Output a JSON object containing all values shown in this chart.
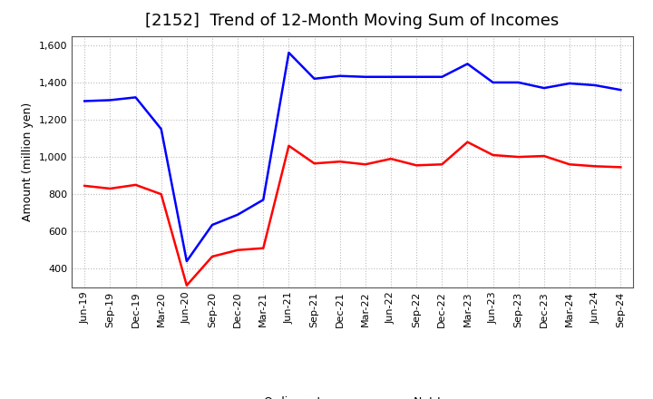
{
  "title": "[2152]  Trend of 12-Month Moving Sum of Incomes",
  "ylabel": "Amount (million yen)",
  "ylim": [
    300,
    1650
  ],
  "yticks": [
    400,
    600,
    800,
    1000,
    1200,
    1400,
    1600
  ],
  "ytick_labels": [
    "400",
    "600",
    "800",
    "1,000",
    "1,200",
    "1,400",
    "1,600"
  ],
  "x_labels": [
    "Jun-19",
    "Sep-19",
    "Dec-19",
    "Mar-20",
    "Jun-20",
    "Sep-20",
    "Dec-20",
    "Mar-21",
    "Jun-21",
    "Sep-21",
    "Dec-21",
    "Mar-22",
    "Jun-22",
    "Sep-22",
    "Dec-22",
    "Mar-23",
    "Jun-23",
    "Sep-23",
    "Dec-23",
    "Mar-24",
    "Jun-24",
    "Sep-24"
  ],
  "ordinary_income": [
    1300,
    1305,
    1320,
    1150,
    440,
    635,
    690,
    770,
    1560,
    1420,
    1435,
    1430,
    1430,
    1430,
    1430,
    1500,
    1400,
    1400,
    1370,
    1395,
    1385,
    1360
  ],
  "net_income": [
    845,
    830,
    850,
    800,
    310,
    465,
    500,
    510,
    1060,
    965,
    975,
    960,
    990,
    955,
    960,
    1080,
    1010,
    1000,
    1005,
    960,
    950,
    945
  ],
  "ordinary_color": "#0000ff",
  "net_color": "#ff0000",
  "line_width": 1.8,
  "background_color": "#ffffff",
  "grid_color": "#bbbbbb",
  "title_fontsize": 13,
  "axis_fontsize": 9,
  "tick_fontsize": 8,
  "legend_fontsize": 9
}
